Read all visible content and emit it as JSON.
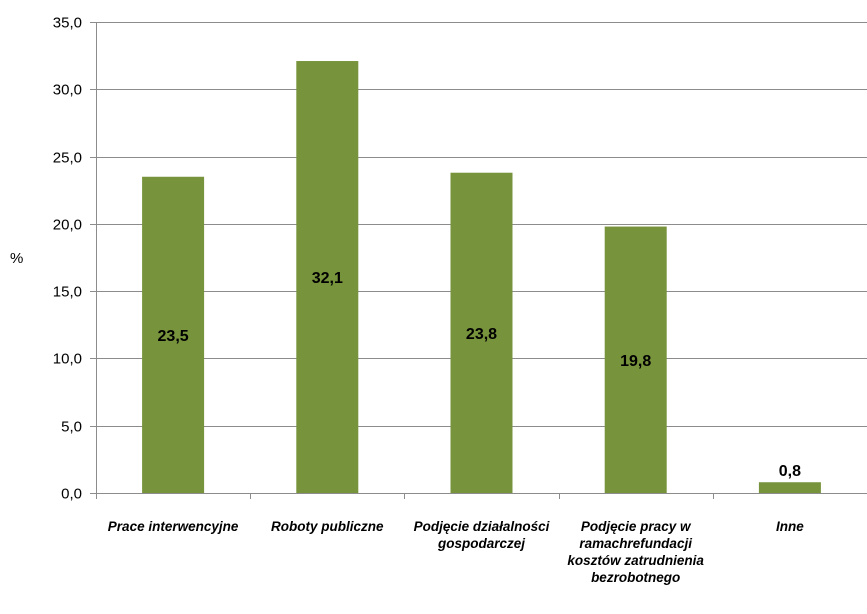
{
  "chart_data": {
    "type": "bar",
    "categories": [
      "Prace interwencyjne",
      "Roboty publiczne",
      "Podjęcie działalności gospodarczej",
      "Podjęcie pracy w ramachrefundacji kosztów zatrudnienia bezrobotnego",
      "Inne"
    ],
    "values": [
      23.5,
      32.1,
      23.8,
      19.8,
      0.8
    ],
    "data_labels": [
      "23,5",
      "32,1",
      "23,8",
      "19,8",
      "0,8"
    ],
    "ylabel": "%",
    "ylim": [
      0,
      35
    ],
    "yticks": [
      "0,0",
      "5,0",
      "10,0",
      "15,0",
      "20,0",
      "25,0",
      "30,0",
      "35,0"
    ],
    "grid": true,
    "legend": "none",
    "bar_color": "#77933c"
  }
}
